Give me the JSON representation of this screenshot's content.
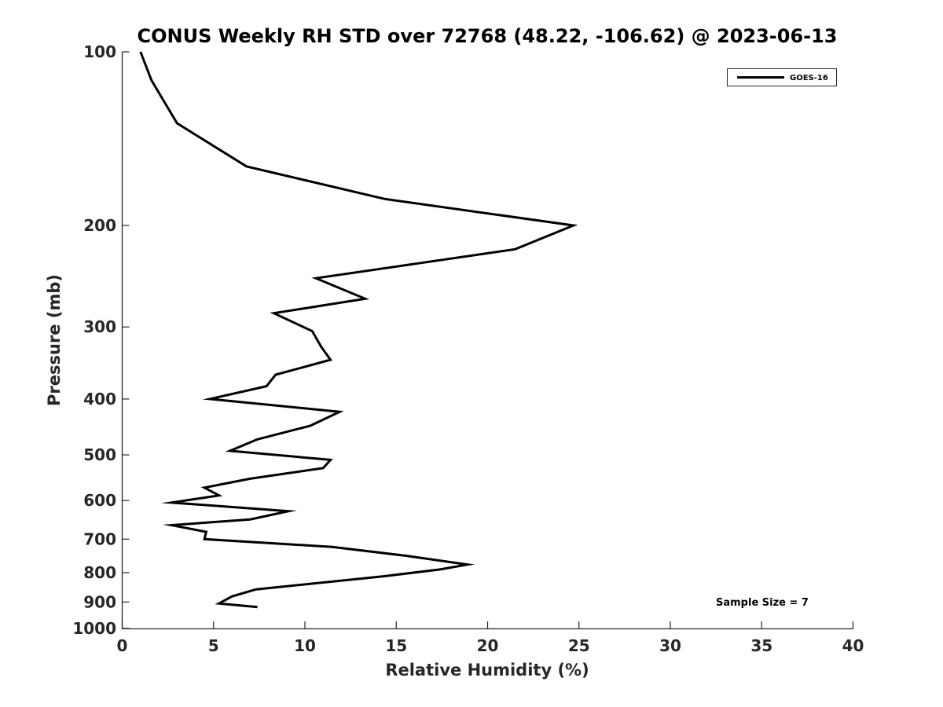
{
  "chart_data": {
    "type": "line",
    "title": "CONUS Weekly RH STD over 72768 (48.22, -106.62) @ 2023-06-13",
    "xlabel": "Relative Humidity (%)",
    "ylabel": "Pressure (mb)",
    "xlim": [
      0,
      40
    ],
    "ylim": [
      100,
      1000
    ],
    "yscale": "log",
    "yreversed": true,
    "xticks": [
      0,
      5,
      10,
      15,
      20,
      25,
      30,
      35,
      40
    ],
    "yticks": [
      100,
      200,
      300,
      400,
      500,
      600,
      700,
      800,
      900,
      1000
    ],
    "grid": false,
    "legend_position": "top-right",
    "series": [
      {
        "name": "GOES-16",
        "color": "#000000",
        "x": [
          1.0,
          1.6,
          3.0,
          6.8,
          14.4,
          24.7,
          21.5,
          10.6,
          13.3,
          8.3,
          10.4,
          10.9,
          11.4,
          8.4,
          7.9,
          4.8,
          11.9,
          10.3,
          7.4,
          5.9,
          11.4,
          11.0,
          7.0,
          4.5,
          5.3,
          2.7,
          9.1,
          7.0,
          2.7,
          4.6,
          4.5,
          11.5,
          15.5,
          18.9,
          17.4,
          14.3,
          7.3,
          6.0,
          5.3,
          7.4
        ],
        "y": [
          100,
          112,
          133,
          158,
          180,
          200,
          220,
          247,
          268,
          284,
          305,
          325,
          342,
          363,
          380,
          400,
          421,
          445,
          470,
          492,
          510,
          527,
          550,
          570,
          588,
          605,
          626,
          647,
          662,
          680,
          700,
          722,
          748,
          775,
          790,
          812,
          856,
          880,
          905,
          918
        ]
      }
    ],
    "annotation": "Sample Size = 7"
  }
}
